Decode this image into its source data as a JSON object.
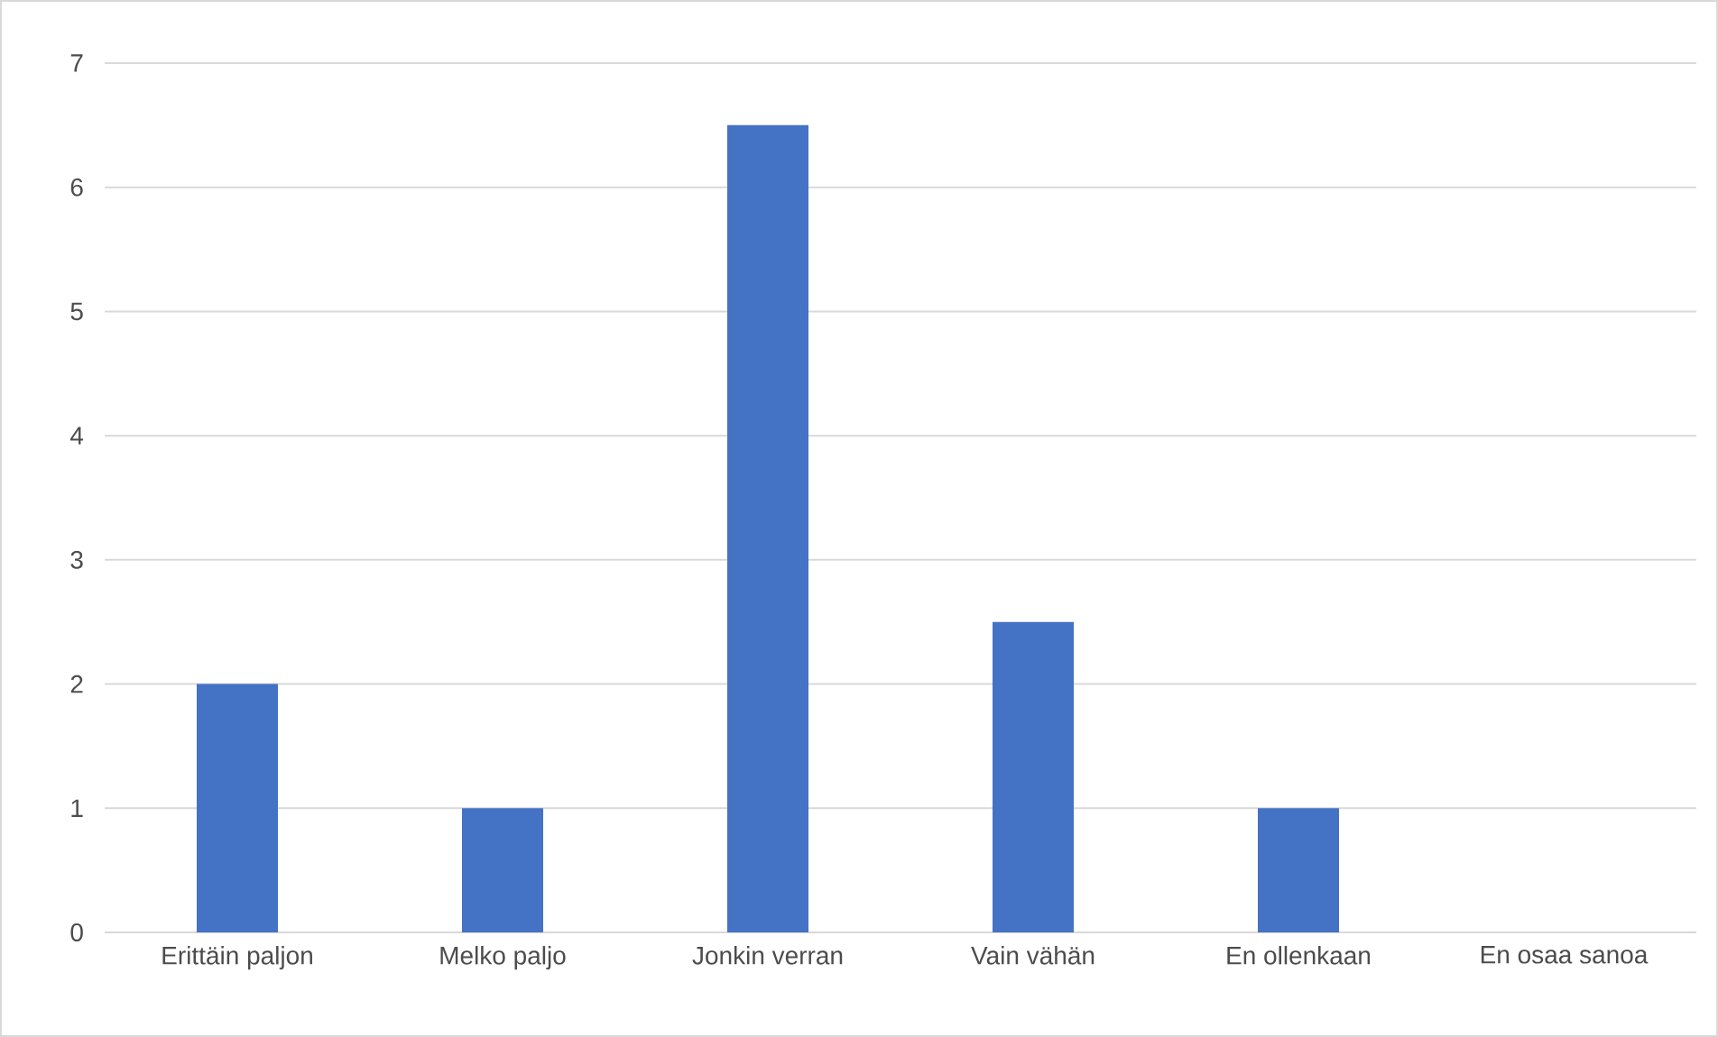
{
  "chart_data": {
    "type": "bar",
    "categories": [
      "Erittäin paljon",
      "Melko paljo",
      "Jonkin verran",
      "Vain vähän",
      "En ollenkaan",
      "En osaa sanoa"
    ],
    "values": [
      2,
      1,
      6.5,
      2.5,
      1,
      0
    ],
    "color": "#4472c4",
    "ylim": [
      0,
      7
    ],
    "yticks": [
      0,
      1,
      2,
      3,
      4,
      5,
      6,
      7
    ],
    "grid": "y"
  }
}
